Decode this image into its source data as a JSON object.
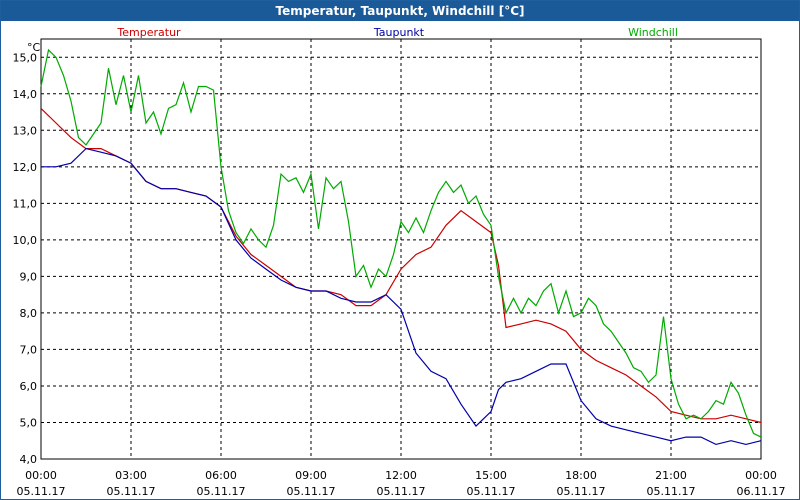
{
  "window": {
    "title": "Temperatur, Taupunkt, Windchill [°C]"
  },
  "chart_data": {
    "type": "line",
    "title": "Temperatur, Taupunkt, Windchill [°C]",
    "ylabel": "°C",
    "xlabel": "",
    "ylim": [
      4.0,
      15.5
    ],
    "xlim": [
      0,
      24
    ],
    "y_ticks": [
      "4,0",
      "5,0",
      "6,0",
      "7,0",
      "8,0",
      "9,0",
      "10,0",
      "11,0",
      "12,0",
      "13,0",
      "14,0",
      "15,0"
    ],
    "x_ticks": [
      {
        "time": "00:00",
        "date": "05.11.17"
      },
      {
        "time": "03:00",
        "date": "05.11.17"
      },
      {
        "time": "06:00",
        "date": "05.11.17"
      },
      {
        "time": "09:00",
        "date": "05.11.17"
      },
      {
        "time": "12:00",
        "date": "05.11.17"
      },
      {
        "time": "15:00",
        "date": "05.11.17"
      },
      {
        "time": "18:00",
        "date": "05.11.17"
      },
      {
        "time": "21:00",
        "date": "05.11.17"
      },
      {
        "time": "00:00",
        "date": "06.11.17"
      }
    ],
    "grid": true,
    "legend": "top",
    "series": [
      {
        "name": "Temperatur",
        "color": "#cc0000",
        "x": [
          0,
          0.5,
          1,
          1.5,
          2,
          2.5,
          3,
          3.5,
          4,
          4.5,
          5,
          5.5,
          6,
          6.5,
          7,
          7.5,
          8,
          8.5,
          9,
          9.5,
          10,
          10.5,
          11,
          11.5,
          12,
          12.5,
          13,
          13.5,
          14,
          14.5,
          15,
          15.25,
          15.5,
          16,
          16.5,
          17,
          17.5,
          18,
          18.5,
          19,
          19.5,
          20,
          20.5,
          21,
          21.5,
          22,
          22.5,
          23,
          23.5,
          24
        ],
        "y": [
          13.6,
          13.2,
          12.8,
          12.5,
          12.5,
          12.3,
          12.1,
          11.6,
          11.4,
          11.4,
          11.3,
          11.2,
          10.9,
          10.1,
          9.6,
          9.3,
          9.0,
          8.7,
          8.6,
          8.6,
          8.5,
          8.2,
          8.2,
          8.5,
          9.2,
          9.6,
          9.8,
          10.4,
          10.8,
          10.5,
          10.2,
          9.3,
          7.6,
          7.7,
          7.8,
          7.7,
          7.5,
          7.0,
          6.7,
          6.5,
          6.3,
          6.0,
          5.7,
          5.3,
          5.2,
          5.1,
          5.1,
          5.2,
          5.1,
          5.0
        ]
      },
      {
        "name": "Taupunkt",
        "color": "#0000aa",
        "x": [
          0,
          0.5,
          1,
          1.5,
          2,
          2.5,
          3,
          3.5,
          4,
          4.5,
          5,
          5.5,
          6,
          6.5,
          7,
          7.5,
          8,
          8.5,
          9,
          9.5,
          10,
          10.5,
          11,
          11.5,
          12,
          12.5,
          13,
          13.5,
          14,
          14.5,
          15,
          15.25,
          15.5,
          16,
          16.5,
          17,
          17.5,
          18,
          18.5,
          19,
          19.5,
          20,
          20.5,
          21,
          21.5,
          22,
          22.5,
          23,
          23.5,
          24
        ],
        "y": [
          12.0,
          12.0,
          12.1,
          12.5,
          12.4,
          12.3,
          12.1,
          11.6,
          11.4,
          11.4,
          11.3,
          11.2,
          10.9,
          10.0,
          9.5,
          9.2,
          8.9,
          8.7,
          8.6,
          8.6,
          8.4,
          8.3,
          8.3,
          8.5,
          8.1,
          6.9,
          6.4,
          6.2,
          5.5,
          4.9,
          5.3,
          5.9,
          6.1,
          6.2,
          6.4,
          6.6,
          6.6,
          5.6,
          5.1,
          4.9,
          4.8,
          4.7,
          4.6,
          4.5,
          4.6,
          4.6,
          4.4,
          4.5,
          4.4,
          4.5
        ]
      },
      {
        "name": "Windchill",
        "color": "#00aa00",
        "x": [
          0,
          0.25,
          0.5,
          0.75,
          1,
          1.25,
          1.5,
          1.75,
          2,
          2.25,
          2.5,
          2.75,
          3,
          3.25,
          3.5,
          3.75,
          4,
          4.25,
          4.5,
          4.75,
          5,
          5.25,
          5.5,
          5.75,
          6,
          6.25,
          6.5,
          6.75,
          7,
          7.25,
          7.5,
          7.75,
          8,
          8.25,
          8.5,
          8.75,
          9,
          9.25,
          9.5,
          9.75,
          10,
          10.25,
          10.5,
          10.75,
          11,
          11.25,
          11.5,
          11.75,
          12,
          12.25,
          12.5,
          12.75,
          13,
          13.25,
          13.5,
          13.75,
          14,
          14.25,
          14.5,
          14.75,
          15,
          15.25,
          15.5,
          15.75,
          16,
          16.25,
          16.5,
          16.75,
          17,
          17.25,
          17.5,
          17.75,
          18,
          18.25,
          18.5,
          18.75,
          19,
          19.25,
          19.5,
          19.75,
          20,
          20.25,
          20.5,
          20.75,
          21,
          21.25,
          21.5,
          21.75,
          22,
          22.25,
          22.5,
          22.75,
          23,
          23.25,
          23.5,
          23.75,
          24
        ],
        "y": [
          14.2,
          15.2,
          15.0,
          14.5,
          13.8,
          12.8,
          12.6,
          12.9,
          13.2,
          14.7,
          13.7,
          14.5,
          13.5,
          14.5,
          13.2,
          13.5,
          12.9,
          13.6,
          13.7,
          14.3,
          13.5,
          14.2,
          14.2,
          14.1,
          12.0,
          10.8,
          10.2,
          9.9,
          10.3,
          10.0,
          9.8,
          10.4,
          11.8,
          11.6,
          11.7,
          11.3,
          11.8,
          10.3,
          11.7,
          11.4,
          11.6,
          10.5,
          9.0,
          9.3,
          8.7,
          9.2,
          9.0,
          9.6,
          10.5,
          10.2,
          10.6,
          10.2,
          10.8,
          11.3,
          11.6,
          11.3,
          11.5,
          11.0,
          11.2,
          10.7,
          10.4,
          9.0,
          8.0,
          8.4,
          8.0,
          8.4,
          8.2,
          8.6,
          8.8,
          8.0,
          8.6,
          7.9,
          8.0,
          8.4,
          8.2,
          7.7,
          7.5,
          7.2,
          6.9,
          6.5,
          6.4,
          6.1,
          6.3,
          7.9,
          6.2,
          5.5,
          5.1,
          5.2,
          5.1,
          5.3,
          5.6,
          5.5,
          6.1,
          5.8,
          5.2,
          4.7,
          4.6
        ]
      }
    ]
  }
}
